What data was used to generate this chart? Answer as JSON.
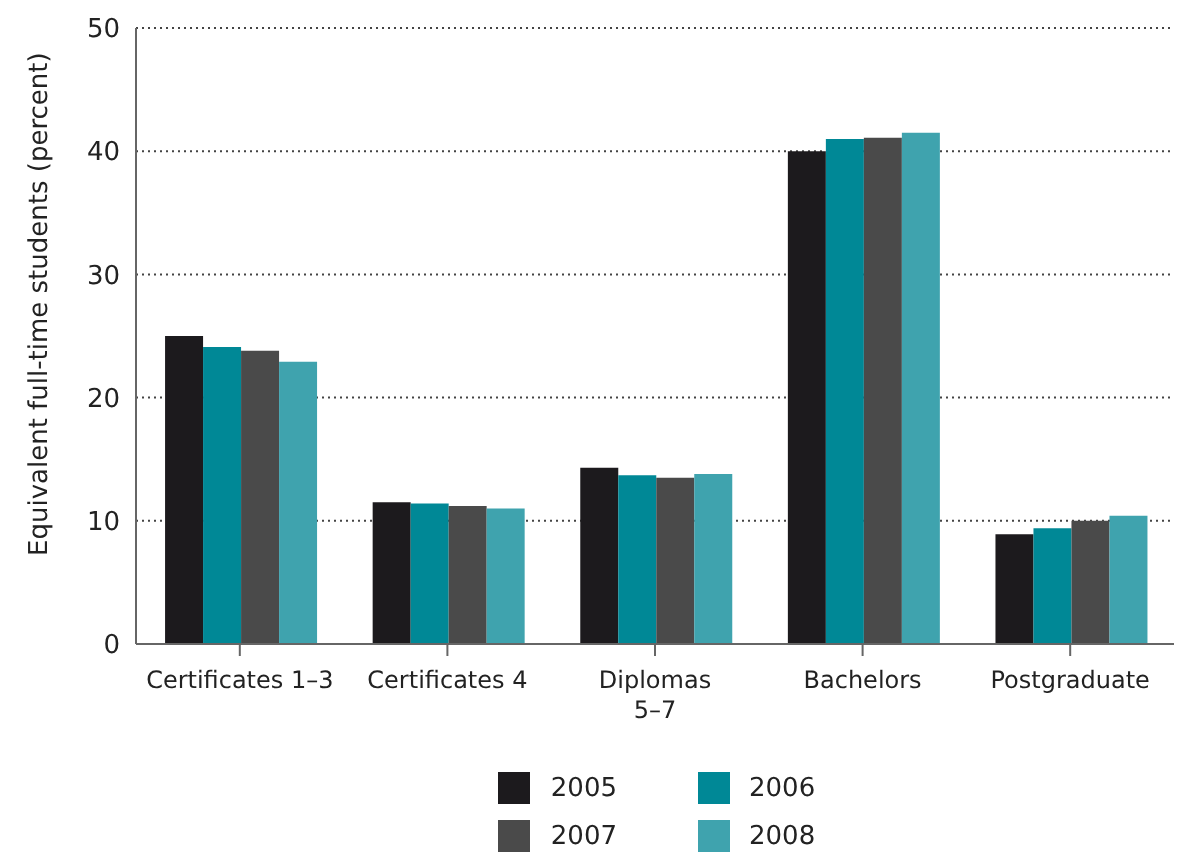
{
  "chart_data": {
    "type": "bar",
    "ylabel": "Equivalent full-time students (percent)",
    "categories": [
      "Certificates 1–3",
      "Certificates 4",
      "Diplomas\n5–7",
      "Bachelors",
      "Postgraduate"
    ],
    "series": [
      {
        "name": "2005",
        "color": "#1c1a1d",
        "values": [
          25.0,
          11.5,
          14.3,
          40.0,
          8.9
        ]
      },
      {
        "name": "2006",
        "color": "#008896",
        "values": [
          24.1,
          11.4,
          13.7,
          41.0,
          9.4
        ]
      },
      {
        "name": "2007",
        "color": "#4a4a4a",
        "values": [
          23.8,
          11.2,
          13.5,
          41.1,
          10.0
        ]
      },
      {
        "name": "2008",
        "color": "#3fa3ae",
        "values": [
          22.9,
          11.0,
          13.8,
          41.5,
          10.4
        ]
      }
    ],
    "ylim": [
      0,
      50
    ],
    "yticks": [
      0,
      10,
      20,
      30,
      40,
      50
    ],
    "grid": "y",
    "legend": "bottom"
  }
}
